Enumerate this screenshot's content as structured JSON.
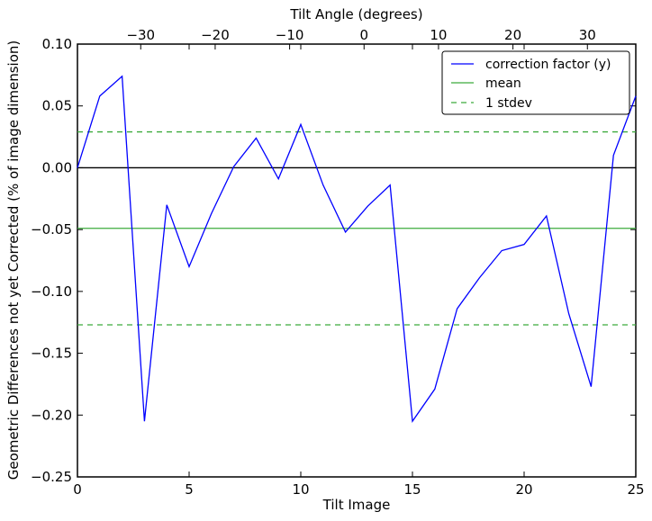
{
  "chart_data": {
    "type": "line",
    "title": "",
    "xlabel": "Tilt Image",
    "ylabel": "Geometric Differences not yet Corrected (% of image dimension)",
    "top_xlabel": "Tilt Angle (degrees)",
    "xlim": [
      0,
      25
    ],
    "ylim": [
      -0.25,
      0.1
    ],
    "top_xlim": [
      -38.5,
      36.5
    ],
    "x_ticks": [
      0,
      5,
      10,
      15,
      20,
      25
    ],
    "x_tick_labels": [
      "0",
      "5",
      "10",
      "15",
      "20",
      "25"
    ],
    "y_ticks": [
      0.1,
      0.05,
      0.0,
      -0.05,
      -0.1,
      -0.15,
      -0.2,
      -0.25
    ],
    "y_tick_labels": [
      "0.10",
      "0.05",
      "0.00",
      "−0.05",
      "−0.10",
      "−0.15",
      "−0.20",
      "−0.25"
    ],
    "top_ticks": [
      -30,
      -20,
      -10,
      0,
      10,
      20,
      30
    ],
    "top_tick_labels": [
      "−30",
      "−20",
      "−10",
      "0",
      "10",
      "20",
      "30"
    ],
    "grid": false,
    "legend_position": "top-right",
    "series": [
      {
        "name": "correction factor (y)",
        "color": "#0000ff",
        "style": "solid",
        "x": [
          0,
          1,
          2,
          3,
          4,
          5,
          6,
          7,
          8,
          9,
          10,
          11,
          12,
          13,
          14,
          15,
          16,
          17,
          18,
          19,
          20,
          21,
          22,
          23,
          24,
          25
        ],
        "y": [
          0.0,
          0.058,
          0.074,
          -0.205,
          -0.03,
          -0.08,
          -0.037,
          0.001,
          0.024,
          -0.009,
          0.035,
          -0.014,
          -0.052,
          -0.031,
          -0.014,
          -0.205,
          -0.179,
          -0.114,
          -0.089,
          -0.067,
          -0.062,
          -0.039,
          -0.118,
          -0.177,
          0.01,
          0.058
        ]
      },
      {
        "name": "mean",
        "color": "#3cab3c",
        "style": "solid",
        "y_const": -0.049
      },
      {
        "name": "1 stdev",
        "color": "#3cab3c",
        "style": "dashed",
        "y_const": [
          0.029,
          -0.127
        ]
      }
    ],
    "reference_line": {
      "y": 0.0,
      "color": "#000000"
    }
  }
}
